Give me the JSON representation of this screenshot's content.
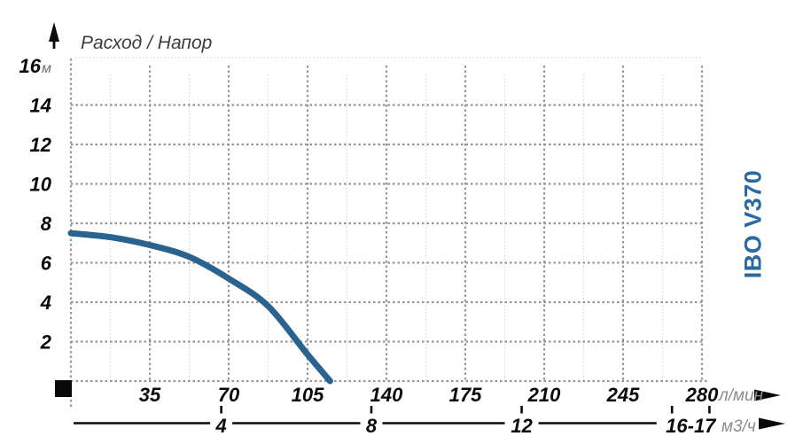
{
  "title": "Расход / Напор",
  "side_label": "IBO V370",
  "chart_data": {
    "type": "line",
    "title": "Расход / Напор",
    "series": [
      {
        "name": "IBO V370",
        "points": [
          [
            0,
            7.5
          ],
          [
            17.5,
            7.3
          ],
          [
            35,
            6.9
          ],
          [
            52.5,
            6.3
          ],
          [
            70,
            5.2
          ],
          [
            87.5,
            3.8
          ],
          [
            105,
            1.35
          ],
          [
            115,
            0
          ]
        ]
      }
    ],
    "x_axis": {
      "unit": "л/мин",
      "min": 0,
      "max": 280,
      "major_ticks": [
        35,
        70,
        105,
        140,
        175,
        210,
        245,
        280
      ],
      "minor_tick_step": 17.5
    },
    "x_axis_secondary": {
      "unit": "м3/ч",
      "items": [
        {
          "label": "4",
          "ticks_lmin": [
            66.7
          ]
        },
        {
          "label": "8",
          "ticks_lmin": [
            133.3
          ]
        },
        {
          "label": "12",
          "ticks_lmin": [
            200
          ]
        },
        {
          "label": "16-17",
          "ticks_lmin": [
            266.7,
            283.3
          ]
        }
      ]
    },
    "y_axis": {
      "unit": "м",
      "min": 0,
      "max": 16,
      "major_ticks": [
        2,
        4,
        6,
        8,
        10,
        12,
        14,
        16
      ]
    },
    "grid": "dotted",
    "legend_position": "right-rotated",
    "colors": {
      "curve": "#2a638f",
      "side_label": "#2b6a9e",
      "grid_major": "#969696",
      "grid_minor": "#d6d6d6",
      "axis_text": "#0b0b0b",
      "unit_text": "#8c8c8c",
      "marker_black": "#0a0a0a"
    }
  }
}
